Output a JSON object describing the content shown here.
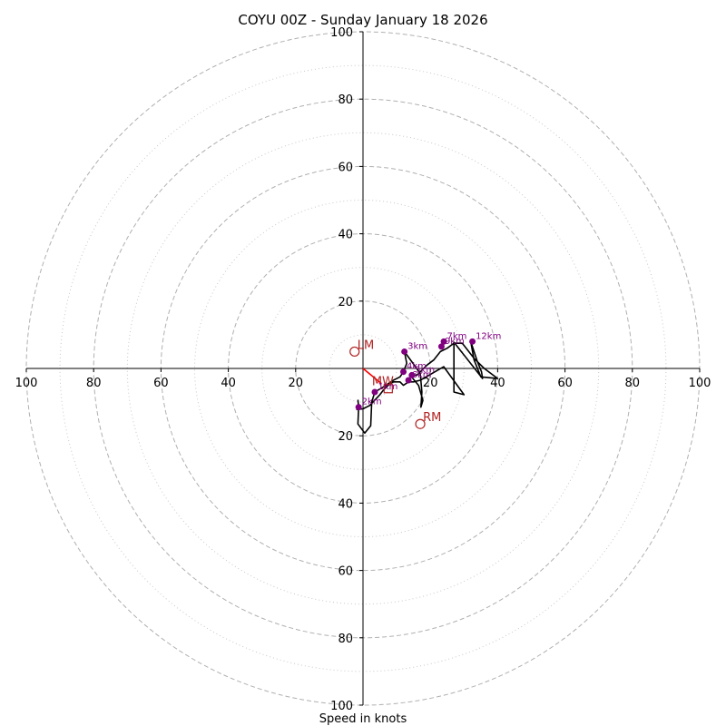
{
  "chart_data": {
    "type": "hodograph",
    "title": "COYU 00Z - Sunday January 18 2026",
    "xlabel": "Speed in knots",
    "axis_range": [
      -100,
      100
    ],
    "ring_major": [
      20,
      40,
      60,
      80,
      100
    ],
    "ring_minor": [
      10,
      30,
      50,
      70,
      90
    ],
    "x_ticks": [
      {
        "value": -100,
        "label": "100"
      },
      {
        "value": -80,
        "label": "80"
      },
      {
        "value": -60,
        "label": "60"
      },
      {
        "value": -40,
        "label": "40"
      },
      {
        "value": -20,
        "label": "20"
      },
      {
        "value": 20,
        "label": "20"
      },
      {
        "value": 40,
        "label": "40"
      },
      {
        "value": 60,
        "label": "60"
      },
      {
        "value": 80,
        "label": "80"
      },
      {
        "value": 100,
        "label": "100"
      }
    ],
    "y_ticks": [
      {
        "value": 100,
        "label": "100"
      },
      {
        "value": 80,
        "label": "80"
      },
      {
        "value": 60,
        "label": "60"
      },
      {
        "value": 40,
        "label": "40"
      },
      {
        "value": 20,
        "label": "20"
      },
      {
        "value": -20,
        "label": "20"
      },
      {
        "value": -40,
        "label": "40"
      },
      {
        "value": -60,
        "label": "60"
      },
      {
        "value": -80,
        "label": "80"
      },
      {
        "value": -100,
        "label": "100"
      }
    ],
    "trace": [
      [
        -1.5,
        -9.3
      ],
      [
        -1.3,
        -11.5
      ],
      [
        -1.5,
        -16.5
      ],
      [
        0.5,
        -19.2
      ],
      [
        2.3,
        -17
      ],
      [
        2.6,
        -10
      ],
      [
        3.5,
        -7
      ],
      [
        6,
        -5.5
      ],
      [
        9,
        -3.5
      ],
      [
        11,
        -2.5
      ],
      [
        12,
        -1
      ],
      [
        13,
        1.5
      ],
      [
        12.3,
        5
      ],
      [
        14.5,
        2
      ],
      [
        17,
        -1.5
      ],
      [
        17.5,
        -7
      ],
      [
        17.2,
        -11.5
      ],
      [
        17.8,
        -9.5
      ],
      [
        16.5,
        -5
      ],
      [
        14,
        -2
      ],
      [
        16,
        -2
      ],
      [
        19,
        1
      ],
      [
        21,
        2.5
      ],
      [
        23,
        5
      ],
      [
        25,
        6
      ],
      [
        27,
        7.5
      ],
      [
        29.5,
        7.5
      ],
      [
        33,
        3
      ],
      [
        36,
        0
      ],
      [
        40,
        -3
      ],
      [
        35,
        -2.5
      ],
      [
        33,
        2.5
      ],
      [
        32,
        8
      ],
      [
        34,
        2
      ],
      [
        35.2,
        -1
      ],
      [
        35.5,
        -3
      ],
      [
        27,
        7.8
      ],
      [
        27,
        -7
      ],
      [
        30,
        -7.8
      ],
      [
        24,
        0.5
      ],
      [
        17,
        -3.5
      ],
      [
        15,
        -4
      ],
      [
        13.5,
        -4
      ],
      [
        12,
        -5
      ],
      [
        11,
        -4
      ],
      [
        9,
        -4
      ],
      [
        7.5,
        -5
      ],
      [
        6,
        -6.5
      ],
      [
        5,
        -7.8
      ],
      [
        2,
        -11
      ],
      [
        0,
        -12
      ],
      [
        -2,
        -12.2
      ]
    ],
    "height_markers": [
      {
        "label": "1km",
        "u": 3.5,
        "v": -7
      },
      {
        "label": "2km",
        "u": -1.3,
        "v": -11.5
      },
      {
        "label": "3km",
        "u": 12.3,
        "v": 5
      },
      {
        "label": "4km",
        "u": 12,
        "v": -1
      },
      {
        "label": "5km",
        "u": 14.5,
        "v": -2
      },
      {
        "label": "6km",
        "u": 13.5,
        "v": -3.5
      },
      {
        "label": "7km",
        "u": 24,
        "v": 8
      },
      {
        "label": "9km",
        "u": 23.3,
        "v": 6.5
      },
      {
        "label": "12km",
        "u": 32.5,
        "v": 8
      }
    ],
    "storm_motion": [
      {
        "label": "LM",
        "u": -2.5,
        "v": 5,
        "marker": "circle"
      },
      {
        "label": "RM",
        "u": 17,
        "v": -16.5,
        "marker": "circle"
      },
      {
        "label": "MW",
        "u": 7.5,
        "v": -6,
        "marker": "square"
      }
    ],
    "shear_vector": {
      "from": [
        0,
        0
      ],
      "to": [
        5.5,
        -4.5
      ]
    },
    "colors": {
      "trace": "#000000",
      "markers": "#800080",
      "storm": "#b22222",
      "shear": "#ff0000",
      "grid": "#b0b0b0"
    }
  }
}
